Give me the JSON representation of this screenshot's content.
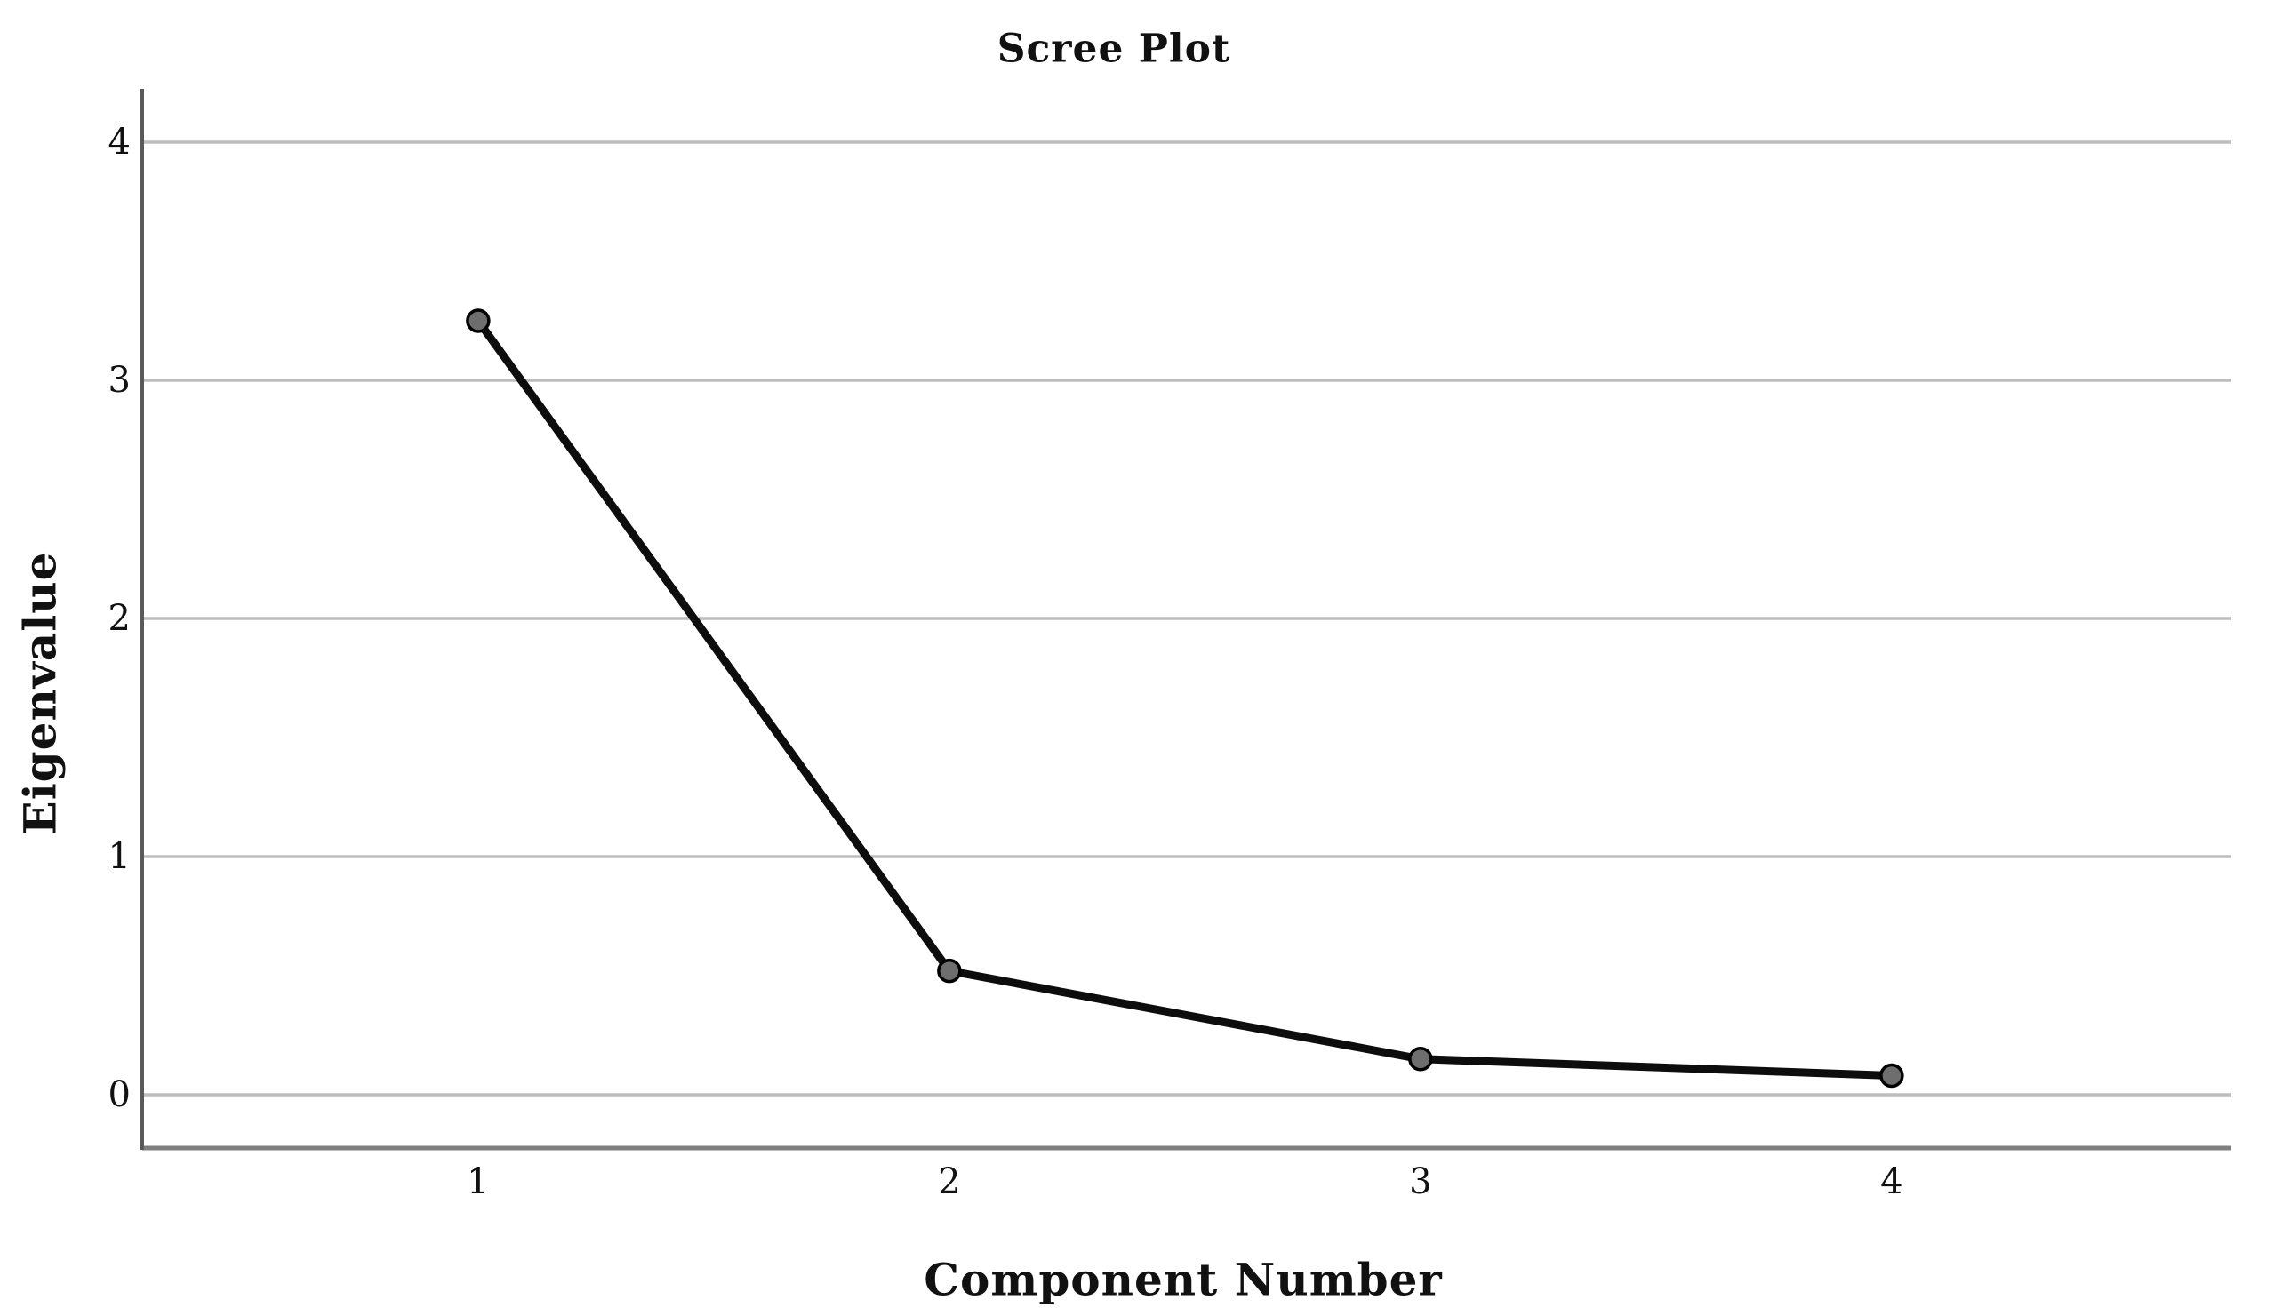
{
  "chart_data": {
    "type": "line",
    "title": "Scree Plot",
    "xlabel": "Component Number",
    "ylabel": "Eigenvalue",
    "series": [
      {
        "name": "Eigenvalue",
        "x": [
          1,
          2,
          3,
          4
        ],
        "y": [
          3.25,
          0.52,
          0.15,
          0.08
        ]
      }
    ],
    "x_ticks": [
      "1",
      "2",
      "3",
      "4"
    ],
    "y_ticks": [
      "0",
      "1",
      "2",
      "3",
      "4"
    ],
    "xlim": [
      0.287,
      4.721
    ],
    "ylim": [
      -0.224,
      4.224
    ],
    "grid": "horizontal",
    "legend": "none",
    "marker": "circle",
    "colors": {
      "background": "#ffffff",
      "text": "#111111",
      "line": "#0d0d0d",
      "marker_fill": "#6e6e6e",
      "marker_stroke": "#000000",
      "gridline": "#bdbdbd",
      "y_axis": "#595959",
      "bottom_frame": "#808080"
    }
  }
}
